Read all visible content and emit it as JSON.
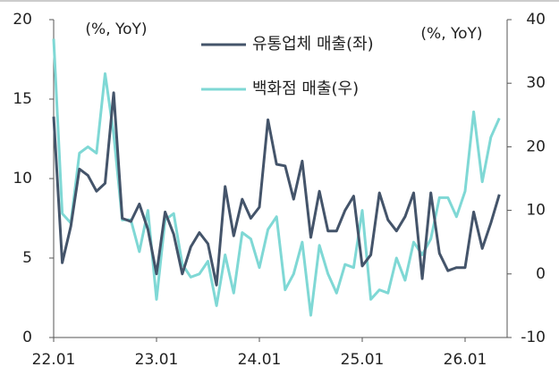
{
  "chart_data": {
    "type": "line",
    "annotations": [
      "(%, YoY)",
      "(%, YoY)"
    ],
    "categories": [
      "22.01",
      null,
      null,
      null,
      null,
      null,
      null,
      null,
      null,
      null,
      null,
      null,
      "23.01",
      null,
      null,
      null,
      null,
      null,
      null,
      null,
      null,
      null,
      null,
      null,
      "24.01",
      null,
      null,
      null,
      null,
      null,
      null,
      null,
      null,
      null,
      null,
      null,
      "25.01",
      null,
      null,
      null,
      null,
      null,
      null,
      null,
      null,
      null,
      null,
      null,
      "26.01",
      null,
      null,
      null,
      null
    ],
    "series": [
      {
        "name": "유통업체 매출(좌)",
        "color": "#44546a",
        "values": [
          13.9,
          4.7,
          7.0,
          10.6,
          10.2,
          9.2,
          9.7,
          15.4,
          7.5,
          7.3,
          8.4,
          6.8,
          4.0,
          7.9,
          6.5,
          4.0,
          5.7,
          6.6,
          5.9,
          3.3,
          9.5,
          6.4,
          8.7,
          7.5,
          8.2,
          13.7,
          10.9,
          10.8,
          8.7,
          11.1,
          6.3,
          9.2,
          6.7,
          6.7,
          8.0,
          8.9,
          4.5,
          5.2,
          9.1,
          7.4,
          6.7,
          7.6,
          9.1,
          3.7,
          9.1,
          5.3,
          4.2,
          4.4,
          4.4,
          7.9,
          5.6,
          7.2,
          9.0
        ]
      },
      {
        "name": "백화점 매출(우)",
        "color": "#7fd8d5",
        "axis": "y2",
        "values": [
          37,
          9.5,
          8,
          19,
          20,
          19,
          31.5,
          22,
          8.5,
          8.5,
          3.5,
          10,
          -4,
          8.5,
          9.5,
          1.5,
          -0.5,
          0,
          2,
          -5,
          3,
          -3,
          6.5,
          5.5,
          1,
          7,
          9,
          -2.5,
          0,
          5,
          -6.5,
          4.5,
          0,
          -3,
          1.5,
          1,
          10,
          -4,
          -2.5,
          -3,
          2.5,
          -1,
          5,
          3,
          5.5,
          12,
          12,
          9,
          13,
          25.5,
          14.5,
          21.5,
          24.5
        ]
      }
    ],
    "ylim": [
      0,
      20
    ],
    "yticks": [
      0,
      5,
      10,
      15,
      20
    ],
    "y2lim": [
      -10,
      40
    ],
    "y2ticks": [
      -10,
      0,
      10,
      20,
      30,
      40
    ]
  }
}
